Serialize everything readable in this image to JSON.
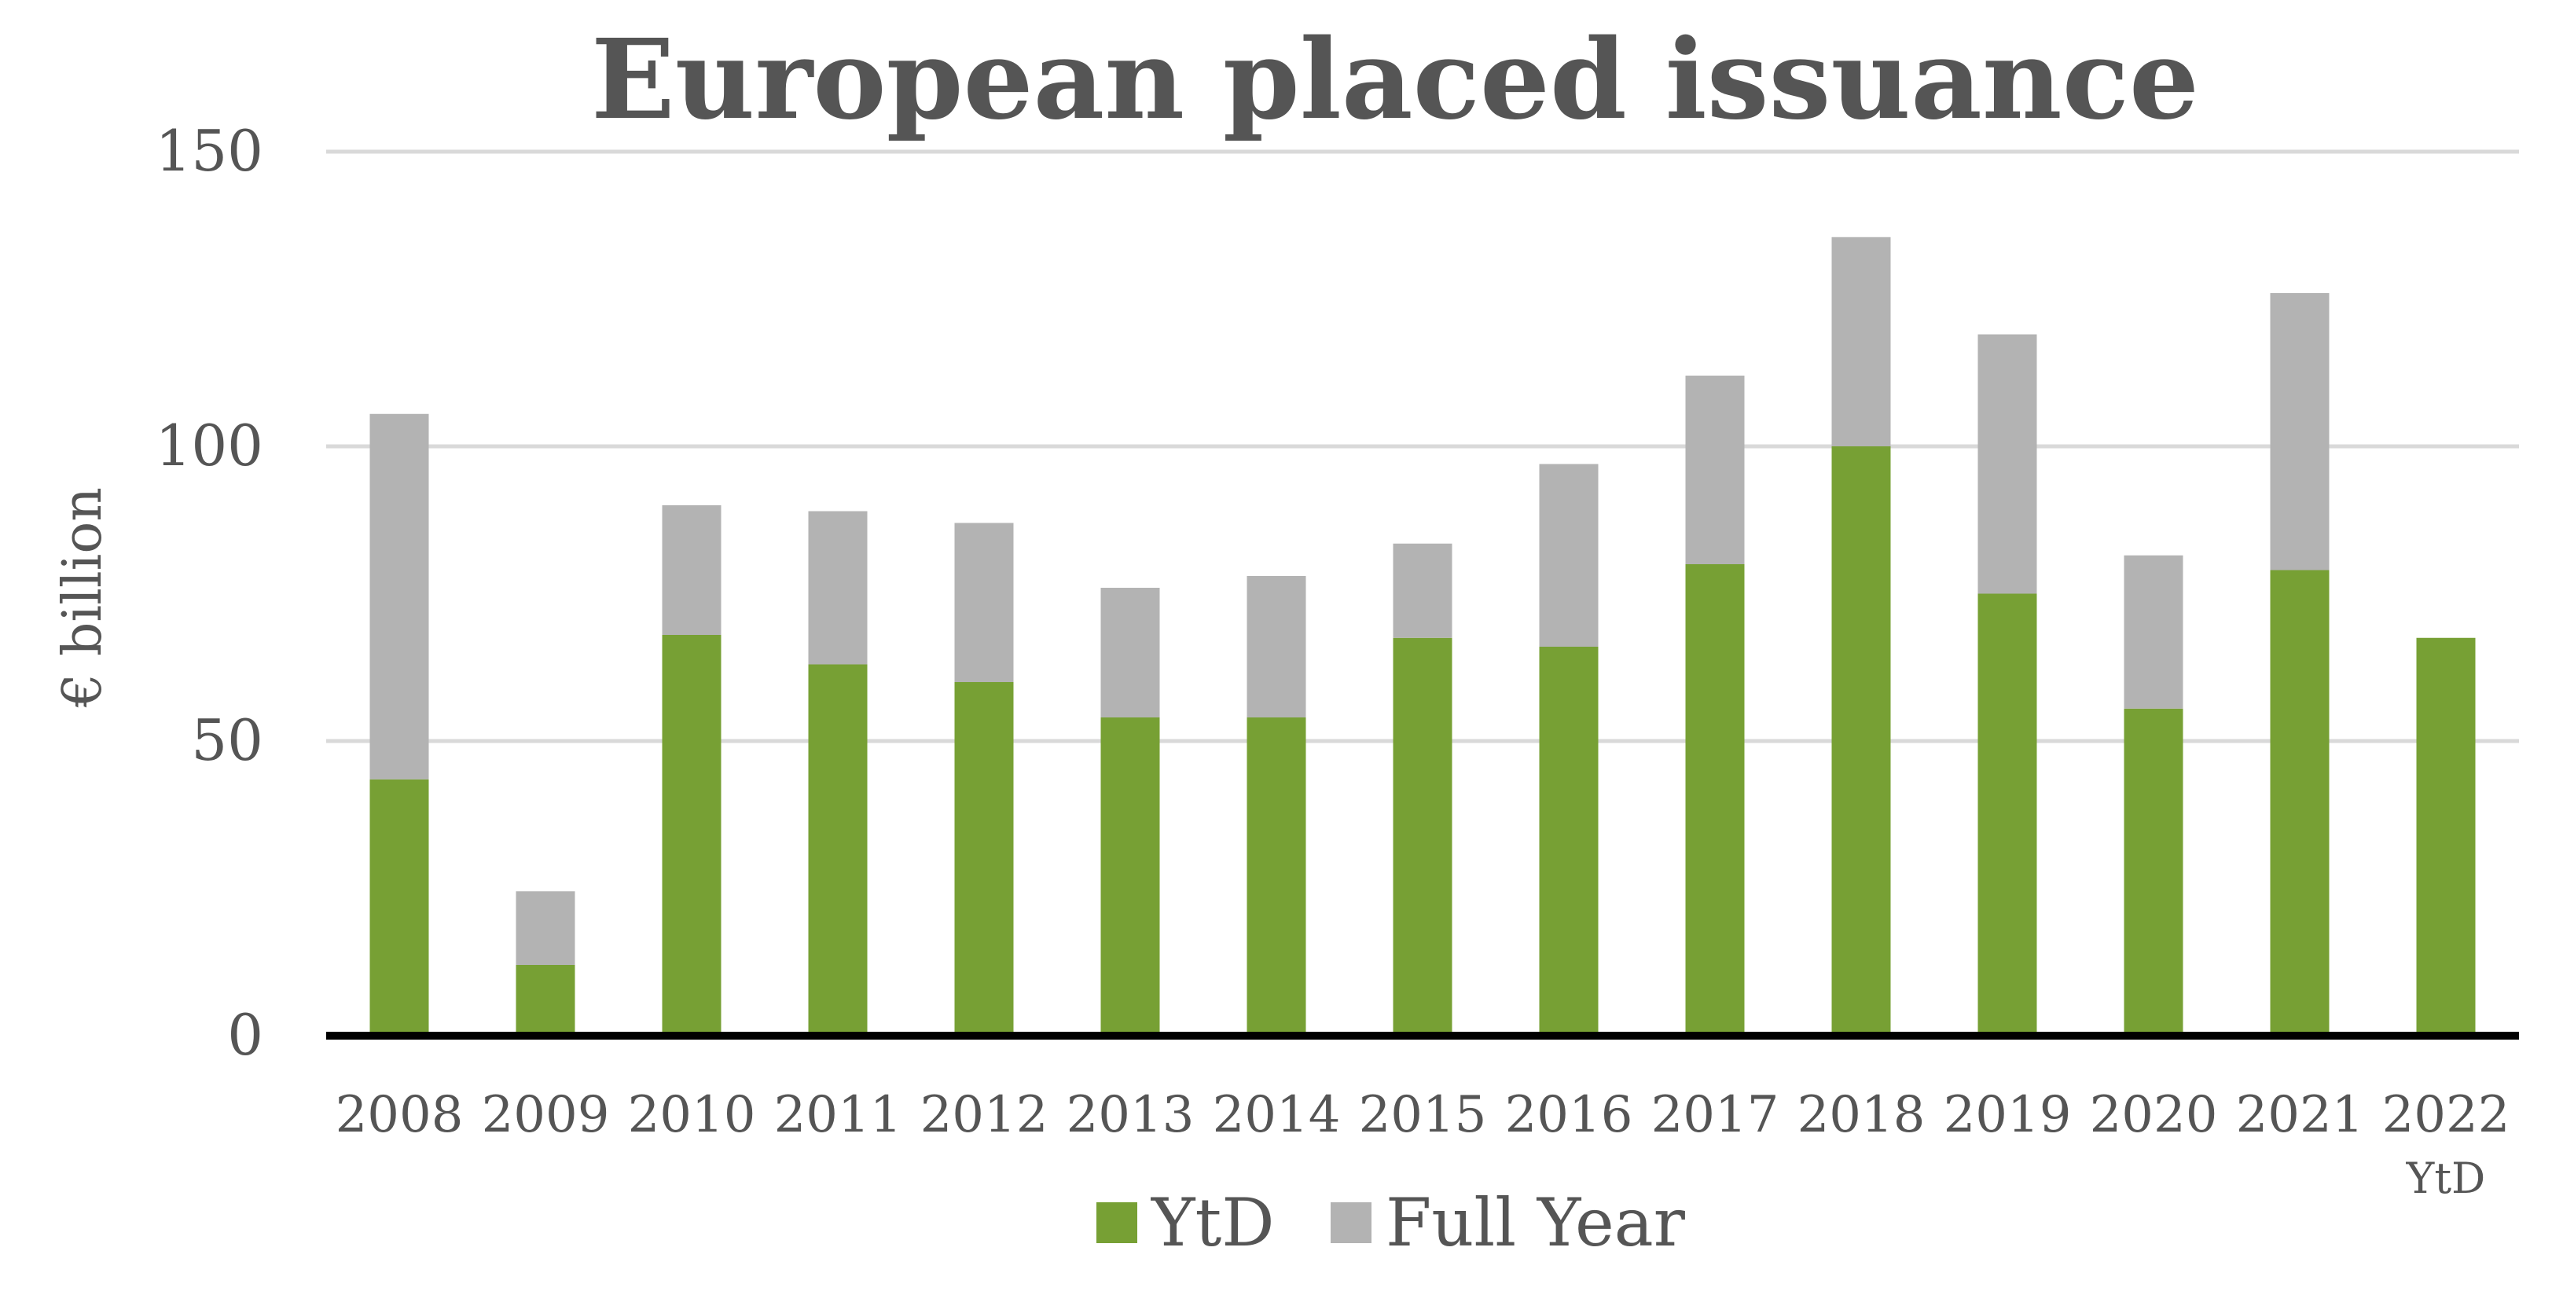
{
  "chart_data": {
    "type": "bar",
    "stacked": true,
    "title": "European placed issuance",
    "ylabel": "€ billion",
    "xlabel": "",
    "ylim": [
      0,
      150
    ],
    "yticks": [
      0,
      50,
      100,
      150
    ],
    "grid": true,
    "legend_position": "bottom",
    "categories": [
      "2008",
      "2009",
      "2010",
      "2011",
      "2012",
      "2013",
      "2014",
      "2015",
      "2016",
      "2017",
      "2018",
      "2019",
      "2020",
      "2021",
      "2022"
    ],
    "category_sublabels": [
      "",
      "",
      "",
      "",
      "",
      "",
      "",
      "",
      "",
      "",
      "",
      "",
      "",
      "",
      "YtD"
    ],
    "series": [
      {
        "name": "YtD",
        "color": "#77a034",
        "values": [
          43.5,
          12,
          68,
          63,
          60,
          54,
          54,
          67.5,
          66,
          80,
          100,
          75,
          55.5,
          79,
          67.5
        ]
      },
      {
        "name": "Full Year",
        "color": "#b3b3b3",
        "values": [
          62,
          12.5,
          22,
          26,
          27,
          22,
          24,
          16,
          31,
          32,
          35.5,
          44,
          26,
          47,
          0
        ]
      }
    ],
    "colors": {
      "text": "#555555",
      "title": "#555555",
      "grid": "#d9d9d9",
      "axis": "#000000"
    }
  }
}
